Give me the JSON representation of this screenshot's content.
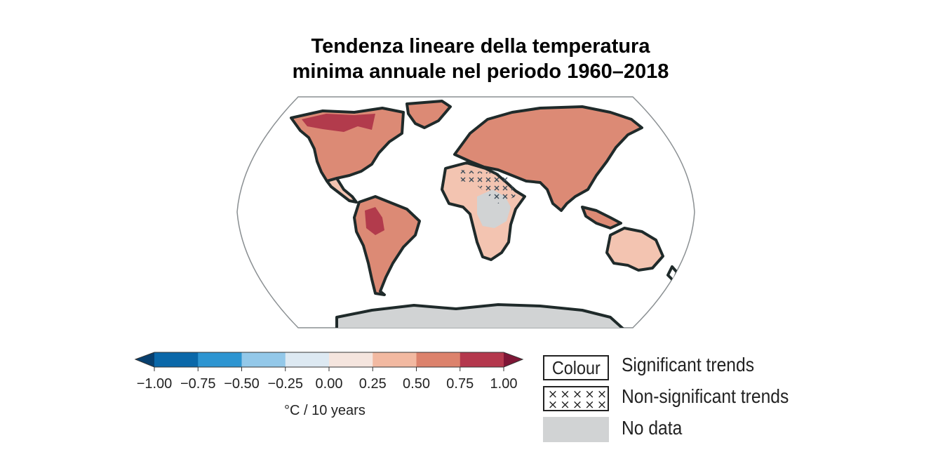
{
  "title": {
    "line1": "Tendenza lineare della temperatura",
    "line2": "minima annuale nel periodo 1960–2018"
  },
  "colorbar": {
    "ticks": [
      "−1.00",
      "−0.75",
      "−0.50",
      "−0.25",
      "0.00",
      "0.25",
      "0.50",
      "0.75",
      "1.00"
    ],
    "bins": [
      "#0a68a9",
      "#2d95d1",
      "#93c8e9",
      "#dde9f2",
      "#f5e5de",
      "#f2b9a1",
      "#dc826c",
      "#b4384d"
    ],
    "low_extend_color": "#073f6e",
    "high_extend_color": "#7e1636",
    "unit": "°C / 10 years"
  },
  "legend": {
    "colour_box_text": "Colour",
    "significant_label": "Significant trends",
    "hatch_symbol": "×",
    "nonsignificant_label": "Non-significant trends",
    "nodata_label": "No data",
    "nodata_color": "#d1d3d4"
  },
  "map": {
    "projection": "Robinson (world)",
    "land_outline_color": "#1f2a2a",
    "ocean_color": "#ffffff",
    "antarctica": "No data"
  }
}
